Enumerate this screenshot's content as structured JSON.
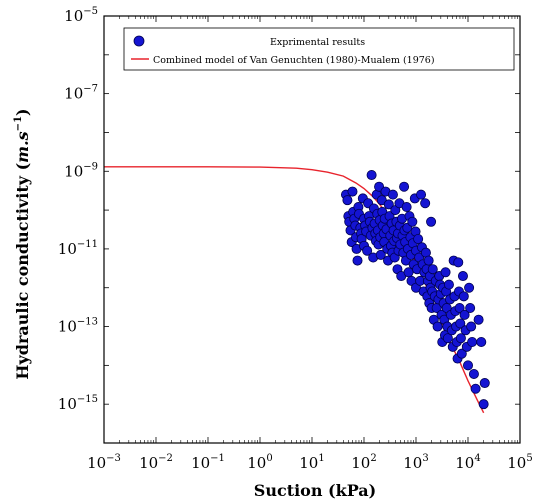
{
  "chart_data": {
    "type": "scatter",
    "xlabel": "Suction (kPa)",
    "ylabel_main": "Hydraulic conductivity (",
    "ylabel_unit": "m.s",
    "ylabel_exp": "−1",
    "ylabel_close": ")",
    "x_scale": "log",
    "y_scale": "log",
    "xlim": [
      0.001,
      100000
    ],
    "ylim": [
      1e-16,
      1e-05
    ],
    "x_ticks": [
      {
        "value": 0.001,
        "base": "10",
        "exp": "−3"
      },
      {
        "value": 0.01,
        "base": "10",
        "exp": "−2"
      },
      {
        "value": 0.1,
        "base": "10",
        "exp": "−1"
      },
      {
        "value": 1,
        "base": "10",
        "exp": "0"
      },
      {
        "value": 10,
        "base": "10",
        "exp": "1"
      },
      {
        "value": 100,
        "base": "10",
        "exp": "2"
      },
      {
        "value": 1000,
        "base": "10",
        "exp": "3"
      },
      {
        "value": 10000,
        "base": "10",
        "exp": "4"
      },
      {
        "value": 100000,
        "base": "10",
        "exp": "5"
      }
    ],
    "y_ticks": [
      {
        "value": 1e-15,
        "base": "10",
        "exp": "−15"
      },
      {
        "value": 1e-13,
        "base": "10",
        "exp": "−13"
      },
      {
        "value": 1e-11,
        "base": "10",
        "exp": "−11"
      },
      {
        "value": 1e-09,
        "base": "10",
        "exp": "−9"
      },
      {
        "value": 1e-07,
        "base": "10",
        "exp": "−7"
      },
      {
        "value": 1e-05,
        "base": "10",
        "exp": "−5"
      }
    ],
    "grid": false,
    "legend_position": "top-right",
    "colors": {
      "points_fill": "#1414d2",
      "points_edge": "#000050",
      "model_line": "#e8242d"
    },
    "series": [
      {
        "name": "Exprimental results",
        "kind": "scatter",
        "points": [
          [
            45,
            2.5e-10
          ],
          [
            48,
            1.8e-10
          ],
          [
            50,
            7e-11
          ],
          [
            52,
            5e-11
          ],
          [
            55,
            3e-11
          ],
          [
            58,
            1.5e-11
          ],
          [
            60,
            3e-10
          ],
          [
            62,
            9e-11
          ],
          [
            65,
            6e-11
          ],
          [
            68,
            4e-11
          ],
          [
            70,
            2e-11
          ],
          [
            72,
            1e-11
          ],
          [
            75,
            5e-12
          ],
          [
            78,
            1.2e-10
          ],
          [
            80,
            8e-11
          ],
          [
            85,
            3.5e-11
          ],
          [
            88,
            2.5e-11
          ],
          [
            90,
            1.8e-11
          ],
          [
            95,
            2e-10
          ],
          [
            100,
            6e-11
          ],
          [
            100,
            1.2e-11
          ],
          [
            105,
            4e-11
          ],
          [
            110,
            2.8e-11
          ],
          [
            115,
            9e-12
          ],
          [
            120,
            1.5e-10
          ],
          [
            125,
            7e-11
          ],
          [
            130,
            5e-11
          ],
          [
            135,
            2.2e-11
          ],
          [
            140,
            8e-10
          ],
          [
            145,
            3.5e-11
          ],
          [
            150,
            6e-12
          ],
          [
            155,
            1.1e-10
          ],
          [
            160,
            4.5e-11
          ],
          [
            165,
            2.5e-11
          ],
          [
            170,
            1.6e-11
          ],
          [
            175,
            2.5e-10
          ],
          [
            180,
            8e-11
          ],
          [
            185,
            3e-11
          ],
          [
            190,
            1.3e-11
          ],
          [
            195,
            4e-10
          ],
          [
            200,
            5.5e-11
          ],
          [
            205,
            2e-11
          ],
          [
            210,
            7e-12
          ],
          [
            220,
            1.8e-10
          ],
          [
            225,
            9e-11
          ],
          [
            230,
            4e-11
          ],
          [
            240,
            2.5e-11
          ],
          [
            245,
            1.5e-11
          ],
          [
            250,
            6e-11
          ],
          [
            260,
            3e-10
          ],
          [
            270,
            3.2e-11
          ],
          [
            280,
            1e-11
          ],
          [
            290,
            5e-12
          ],
          [
            300,
            1.4e-10
          ],
          [
            310,
            7e-11
          ],
          [
            320,
            2.2e-11
          ],
          [
            330,
            1.2e-11
          ],
          [
            340,
            4.5e-11
          ],
          [
            350,
            8e-12
          ],
          [
            360,
            2.5e-10
          ],
          [
            370,
            3e-11
          ],
          [
            380,
            1.6e-11
          ],
          [
            390,
            6e-12
          ],
          [
            400,
            1e-10
          ],
          [
            420,
            5e-11
          ],
          [
            430,
            1.9e-11
          ],
          [
            440,
            3e-12
          ],
          [
            450,
            2.5e-11
          ],
          [
            460,
            9e-12
          ],
          [
            480,
            1.5e-10
          ],
          [
            490,
            4e-11
          ],
          [
            500,
            1.3e-11
          ],
          [
            520,
            2e-12
          ],
          [
            540,
            6e-11
          ],
          [
            550,
            2.2e-11
          ],
          [
            570,
            8e-12
          ],
          [
            590,
            4e-10
          ],
          [
            600,
            3e-11
          ],
          [
            620,
            1.5e-11
          ],
          [
            640,
            5e-12
          ],
          [
            660,
            1.2e-10
          ],
          [
            680,
            3.5e-11
          ],
          [
            700,
            1e-11
          ],
          [
            720,
            2.5e-12
          ],
          [
            750,
            7e-11
          ],
          [
            780,
            2e-11
          ],
          [
            800,
            7e-12
          ],
          [
            820,
            1.5e-12
          ],
          [
            850,
            5e-11
          ],
          [
            870,
            1.4e-11
          ],
          [
            900,
            4e-12
          ],
          [
            950,
            2e-10
          ],
          [
            980,
            2.8e-11
          ],
          [
            1000,
            9e-12
          ],
          [
            1000,
            1e-12
          ],
          [
            1050,
            3e-12
          ],
          [
            1100,
            1.8e-11
          ],
          [
            1150,
            6e-12
          ],
          [
            1200,
            1.5e-12
          ],
          [
            1250,
            2.5e-10
          ],
          [
            1300,
            1.1e-11
          ],
          [
            1350,
            4e-12
          ],
          [
            1400,
            8e-13
          ],
          [
            1450,
            2.5e-12
          ],
          [
            1500,
            1.5e-10
          ],
          [
            1550,
            8e-12
          ],
          [
            1600,
            3e-12
          ],
          [
            1650,
            6e-13
          ],
          [
            1700,
            1.5e-12
          ],
          [
            1750,
            5e-12
          ],
          [
            1800,
            4e-13
          ],
          [
            1850,
            2e-12
          ],
          [
            1900,
            1e-12
          ],
          [
            1950,
            5e-11
          ],
          [
            2000,
            3e-13
          ],
          [
            2050,
            8e-13
          ],
          [
            2100,
            3e-12
          ],
          [
            2200,
            1.5e-13
          ],
          [
            2300,
            6e-13
          ],
          [
            2400,
            1.5e-12
          ],
          [
            2500,
            3e-13
          ],
          [
            2600,
            1e-13
          ],
          [
            2700,
            5e-13
          ],
          [
            2800,
            2e-12
          ],
          [
            2900,
            1.2e-12
          ],
          [
            3000,
            7e-13
          ],
          [
            3100,
            2e-13
          ],
          [
            3200,
            4e-14
          ],
          [
            3300,
            1e-12
          ],
          [
            3400,
            4e-13
          ],
          [
            3500,
            1.5e-13
          ],
          [
            3600,
            6e-14
          ],
          [
            3700,
            2.5e-12
          ],
          [
            3800,
            8e-13
          ],
          [
            3900,
            3e-13
          ],
          [
            4000,
            1e-13
          ],
          [
            4100,
            5e-14
          ],
          [
            4300,
            1.2e-12
          ],
          [
            4500,
            5e-13
          ],
          [
            4700,
            2e-13
          ],
          [
            4900,
            8e-14
          ],
          [
            5100,
            3e-14
          ],
          [
            5300,
            5e-12
          ],
          [
            5500,
            6e-13
          ],
          [
            5700,
            2.5e-13
          ],
          [
            5900,
            1e-13
          ],
          [
            6100,
            4e-14
          ],
          [
            6300,
            1.5e-14
          ],
          [
            6500,
            4.5e-12
          ],
          [
            6700,
            8e-13
          ],
          [
            6900,
            3e-13
          ],
          [
            7100,
            1.2e-13
          ],
          [
            7300,
            5e-14
          ],
          [
            7600,
            2e-14
          ],
          [
            8000,
            2e-12
          ],
          [
            8300,
            6e-13
          ],
          [
            8600,
            2e-13
          ],
          [
            9000,
            8e-14
          ],
          [
            9500,
            3e-14
          ],
          [
            10000,
            1e-14
          ],
          [
            10500,
            1e-12
          ],
          [
            11000,
            3e-13
          ],
          [
            11500,
            1e-13
          ],
          [
            12000,
            4e-14
          ],
          [
            13000,
            6e-15
          ],
          [
            14000,
            2.5e-15
          ],
          [
            16000,
            1.5e-13
          ],
          [
            18000,
            4e-14
          ],
          [
            20000,
            1e-15
          ],
          [
            21000,
            3.5e-15
          ]
        ]
      },
      {
        "name": "Combined model of Van Genuchten (1980)-Mualem (1976)",
        "kind": "line",
        "points": [
          [
            0.001,
            1.3e-09
          ],
          [
            0.1,
            1.3e-09
          ],
          [
            1,
            1.28e-09
          ],
          [
            5,
            1.2e-09
          ],
          [
            10,
            1.1e-09
          ],
          [
            20,
            9.5e-10
          ],
          [
            40,
            7.5e-10
          ],
          [
            70,
            5e-10
          ],
          [
            100,
            3.6e-10
          ],
          [
            150,
            2.2e-10
          ],
          [
            200,
            1.4e-10
          ],
          [
            300,
            7e-11
          ],
          [
            500,
            2.5e-11
          ],
          [
            700,
            1.1e-11
          ],
          [
            1000,
            4.5e-12
          ],
          [
            1500,
            1.3e-12
          ],
          [
            2000,
            5e-13
          ],
          [
            3000,
            1.5e-13
          ],
          [
            5000,
            3e-14
          ],
          [
            7000,
            1.2e-14
          ],
          [
            10000,
            4e-15
          ],
          [
            15000,
            1.3e-15
          ],
          [
            20000,
            6e-16
          ]
        ]
      }
    ]
  }
}
